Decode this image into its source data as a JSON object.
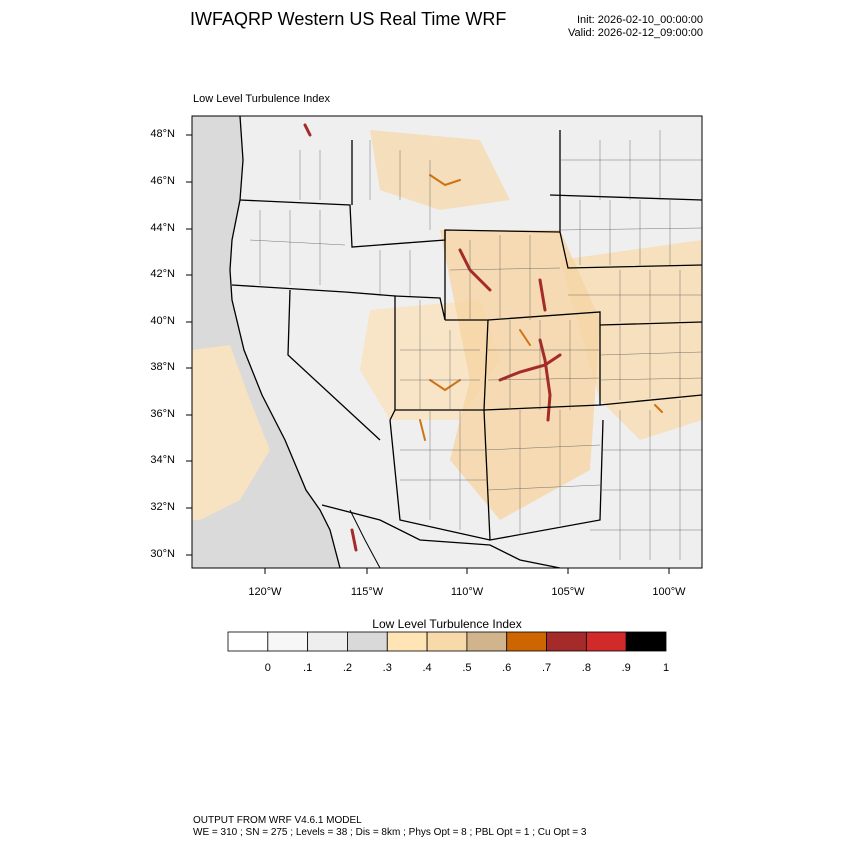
{
  "header": {
    "title": "IWFAQRP Western US Real Time WRF",
    "init": "Init: 2026-02-10_00:00:00",
    "valid": "Valid: 2026-02-12_09:00:00"
  },
  "map": {
    "field_title": "Low Level Turbulence Index",
    "lat_ticks": [
      "48°N",
      "46°N",
      "44°N",
      "42°N",
      "40°N",
      "38°N",
      "36°N",
      "34°N",
      "32°N",
      "30°N"
    ],
    "lon_ticks": [
      "120°W",
      "115°W",
      "110°W",
      "105°W",
      "100°W"
    ],
    "background_color": "#e8e8e8",
    "field_palette": [
      "#ffffff",
      "#f5f5f5",
      "#ececec",
      "#d7d7d7",
      "#ffe4b5",
      "#f6d4a4",
      "#d3b08c",
      "#cd6600",
      "#a52a2a",
      "#d2292b",
      "#000000"
    ]
  },
  "colorbar": {
    "title": "Low Level Turbulence Index",
    "labels": [
      "0",
      ".1",
      ".2",
      ".3",
      ".4",
      ".5",
      ".6",
      ".7",
      ".8",
      ".9",
      "1"
    ],
    "colors": [
      "#ffffff",
      "#f7f7f7",
      "#eeeeee",
      "#d9d9d9",
      "#ffe4b5",
      "#f8d9a9",
      "#d2b48c",
      "#cd6600",
      "#a52a2a",
      "#d2292b",
      "#000000"
    ]
  },
  "footer": {
    "line1": "OUTPUT FROM WRF V4.6.1 MODEL",
    "line2": "WE = 310 ; SN = 275 ; Levels = 38 ; Dis = 8km ; Phys Opt = 8 ; PBL Opt = 1 ; Cu Opt = 3"
  }
}
